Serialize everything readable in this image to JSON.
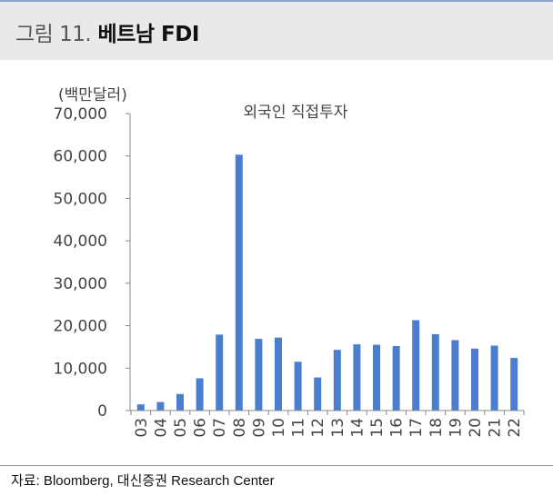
{
  "figure": {
    "label": "그림 11.",
    "title": "베트남 FDI"
  },
  "source": "자료: Bloomberg, 대신증권 Research Center",
  "colors": {
    "bar": "#4a7fcf",
    "axis": "#888888",
    "header_bg": "#e9e9e9",
    "top_rule": "#8aa6cf"
  },
  "chart_data": {
    "type": "bar",
    "title": "외국인 직접투자",
    "xlabel": "",
    "ylabel": "(백만달러)",
    "ylim": [
      0,
      70000
    ],
    "yticks": [
      0,
      10000,
      20000,
      30000,
      40000,
      50000,
      60000,
      70000
    ],
    "ytick_labels": [
      "0",
      "10,000",
      "20,000",
      "30,000",
      "40,000",
      "50,000",
      "60,000",
      "70,000"
    ],
    "grid": false,
    "legend": "none",
    "categories": [
      "03",
      "04",
      "05",
      "06",
      "07",
      "08",
      "09",
      "10",
      "11",
      "12",
      "13",
      "14",
      "15",
      "16",
      "17",
      "18",
      "19",
      "20",
      "21",
      "22"
    ],
    "series": [
      {
        "values": [
          1450,
          2000,
          3900,
          7600,
          17900,
          60300,
          16900,
          17200,
          11500,
          7800,
          14300,
          15600,
          15500,
          15200,
          21300,
          18000,
          16600,
          14600,
          15300,
          12400
        ]
      }
    ]
  }
}
